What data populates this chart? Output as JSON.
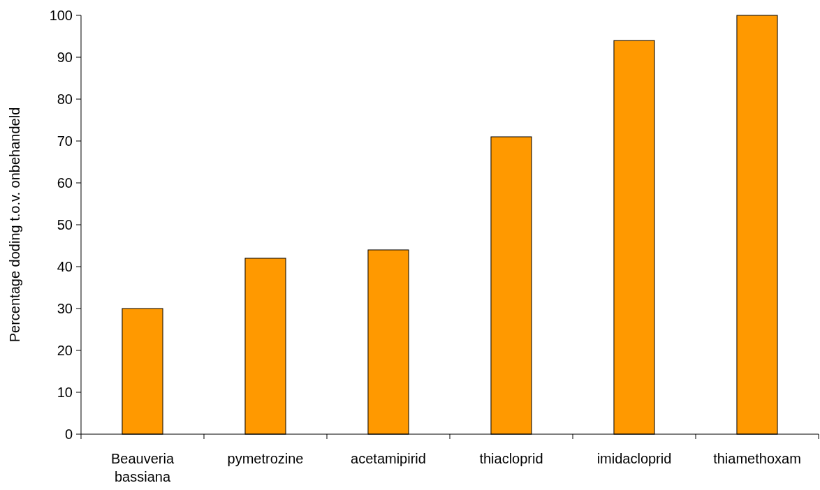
{
  "chart_data": {
    "type": "bar",
    "ylabel": "Percentage doding t.o.v. onbehandeld",
    "categories": [
      "Beauveria bassiana",
      "pymetrozine",
      "acetamipirid",
      "thiacloprid",
      "imidacloprid",
      "thiamethoxam"
    ],
    "values": [
      30,
      42,
      44,
      71,
      94,
      100
    ],
    "color": "#ff9900",
    "ylim": [
      0,
      100
    ],
    "yticks": [
      0,
      10,
      20,
      30,
      40,
      50,
      60,
      70,
      80,
      90,
      100
    ],
    "grid": false
  }
}
